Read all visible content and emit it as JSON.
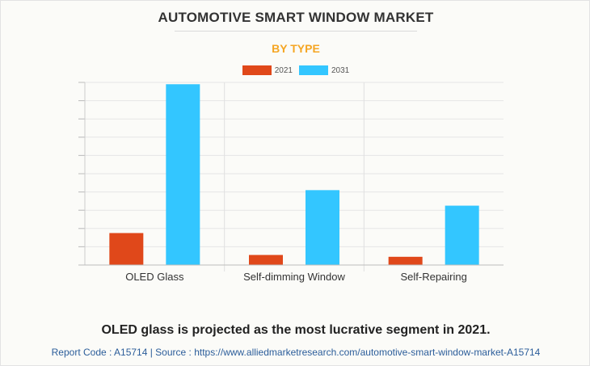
{
  "header": {
    "title": "AUTOMOTIVE SMART WINDOW MARKET",
    "subtitle": "BY TYPE"
  },
  "footer": {
    "caption": "OLED glass is projected as the most lucrative segment in 2021.",
    "source": "Report Code : A15714  |  Source : https://www.alliedmarketresearch.com/automotive-smart-window-market-A15714"
  },
  "colors": {
    "series_2021": "#e0481a",
    "series_2031": "#33c6ff",
    "subtitle": "#f5a623"
  },
  "chart_data": {
    "type": "bar",
    "title": "AUTOMOTIVE SMART WINDOW MARKET",
    "subtitle": "BY TYPE",
    "categories": [
      "OLED Glass",
      "Self-dimming Window",
      "Self-Repairing"
    ],
    "series": [
      {
        "name": "2021",
        "values": [
          17.5,
          5.5,
          4.5
        ]
      },
      {
        "name": "2031",
        "values": [
          99.0,
          41.0,
          32.5
        ]
      }
    ],
    "ylim": [
      0,
      100
    ],
    "grid": true,
    "legend_position": "top-center"
  }
}
